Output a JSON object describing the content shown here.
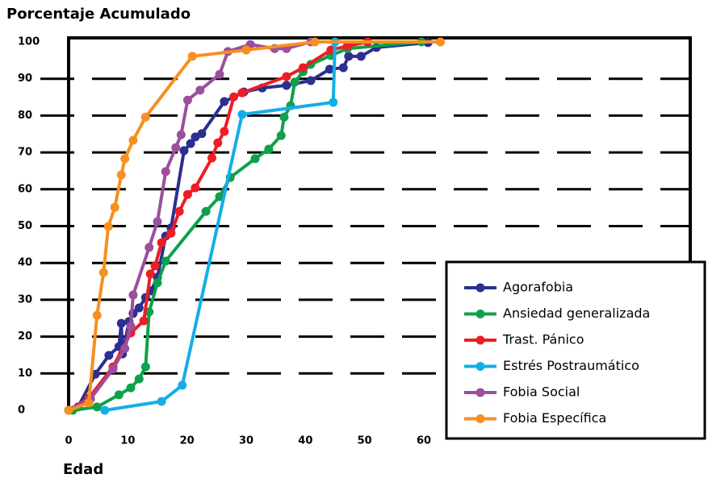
{
  "chart_data": {
    "type": "line",
    "title": "Porcentaje Acumulado",
    "x_label": "Edad",
    "xlim": [
      0,
      105
    ],
    "ylim": [
      0,
      100
    ],
    "xticks": [
      0,
      10,
      20,
      30,
      40,
      50,
      60
    ],
    "yticks": [
      0,
      10,
      20,
      30,
      40,
      50,
      60,
      70,
      80,
      90,
      100
    ],
    "grid": true,
    "legend": "lower right",
    "series": [
      {
        "name": "Agorafobia",
        "color": "#2b2f8f",
        "x": [
          1.6,
          4.5,
          6.8,
          8.5,
          8.9,
          9.1,
          10.2,
          10.9,
          11.9,
          13.0,
          13.9,
          15.0,
          16.4,
          17.3,
          19.5,
          20.6,
          21.4,
          22.5,
          26.3,
          29.6,
          32.7,
          36.8,
          40.9,
          44.1,
          46.4,
          47.3,
          49.4,
          52.0,
          60.7
        ],
        "values": [
          0.9,
          9.8,
          14.9,
          17.3,
          23.6,
          15.3,
          24.1,
          26.3,
          27.8,
          30.6,
          32.4,
          36.1,
          47.3,
          49.5,
          70.5,
          72.4,
          74.2,
          75.1,
          83.8,
          86.4,
          87.5,
          88.2,
          89.5,
          92.6,
          93.0,
          96.1,
          96.1,
          98.5,
          99.8
        ]
      },
      {
        "name": "Ansiedad generalizada",
        "color": "#0ea04b",
        "x": [
          0.7,
          4.8,
          8.5,
          10.5,
          11.9,
          13.0,
          13.6,
          15.0,
          16.4,
          23.2,
          25.5,
          27.3,
          31.5,
          33.8,
          35.9,
          36.4,
          37.5,
          38.2,
          39.6,
          40.9,
          44.3,
          47.1,
          59.6
        ],
        "values": [
          0,
          0.9,
          4.2,
          6.1,
          8.5,
          11.8,
          26.7,
          34.6,
          40.5,
          54.0,
          58.0,
          63.2,
          68.3,
          70.9,
          74.6,
          79.6,
          82.7,
          89.1,
          91.9,
          93.9,
          96.3,
          98.2,
          100
        ]
      },
      {
        "name": "Trast. Pánico",
        "color": "#ee1c25",
        "x": [
          0,
          3.4,
          7.5,
          10.5,
          12.7,
          13.8,
          14.6,
          15.7,
          17.3,
          18.7,
          20.1,
          21.4,
          24.2,
          25.2,
          26.3,
          27.9,
          29.3,
          36.8,
          39.6,
          44.3,
          47.1,
          50.5
        ],
        "values": [
          0,
          3.3,
          11.8,
          21.0,
          24.3,
          37.0,
          39.2,
          45.5,
          48.1,
          54.0,
          58.6,
          60.4,
          68.5,
          72.6,
          75.7,
          85.1,
          86.2,
          90.6,
          93.0,
          97.8,
          98.9,
          100
        ]
      },
      {
        "name": "Estrés Postraumático",
        "color": "#13aee8",
        "x": [
          6.1,
          15.7,
          19.2,
          29.3,
          44.7,
          45.0
        ],
        "values": [
          0,
          2.4,
          6.8,
          80.3,
          83.6,
          100
        ]
      },
      {
        "name": "Fobia Social",
        "color": "#9b4f9e",
        "x": [
          0,
          3.7,
          7.5,
          9.5,
          10.5,
          10.9,
          13.6,
          15.0,
          16.4,
          18.1,
          19.0,
          20.1,
          22.2,
          25.5,
          26.9,
          30.7,
          34.8,
          36.8,
          40.9
        ],
        "values": [
          0,
          3.1,
          11.2,
          16.8,
          22.8,
          31.3,
          44.2,
          51.2,
          64.8,
          71.3,
          74.8,
          84.2,
          86.9,
          91.2,
          97.4,
          99.3,
          98.2,
          98.2,
          100
        ]
      },
      {
        "name": "Fobia Específica",
        "color": "#f7901e",
        "x": [
          0,
          3.4,
          4.8,
          5.9,
          6.7,
          7.8,
          8.9,
          9.5,
          10.9,
          13.0,
          20.9,
          30.0,
          41.6,
          62.8
        ],
        "values": [
          0,
          2.0,
          25.8,
          37.4,
          49.9,
          55.1,
          63.9,
          68.3,
          73.3,
          79.6,
          96.1,
          97.8,
          100,
          100
        ]
      }
    ]
  }
}
